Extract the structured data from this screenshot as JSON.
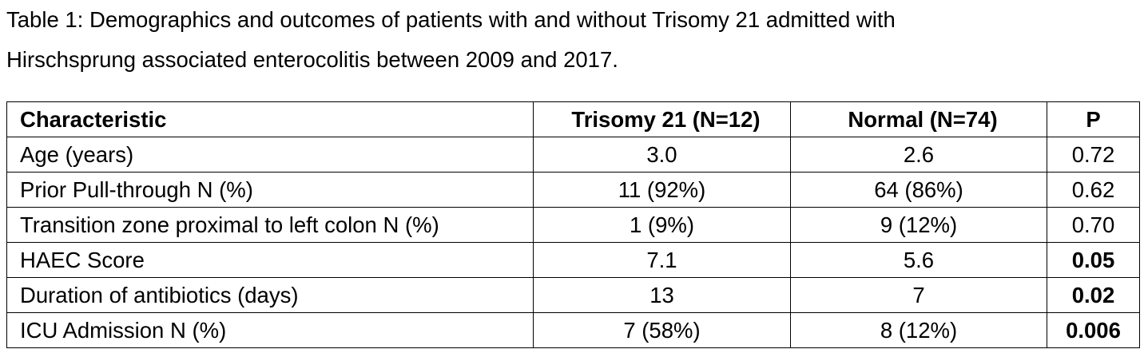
{
  "caption": {
    "line1": "Table 1: Demographics and outcomes of patients with and without Trisomy 21 admitted with",
    "line2": "Hirschsprung associated enterocolitis between 2009 and 2017."
  },
  "table": {
    "headers": [
      "Characteristic",
      "Trisomy 21 (N=12)",
      "Normal (N=74)",
      "P"
    ],
    "rows": [
      {
        "characteristic": "Age (years)",
        "trisomy": "3.0",
        "normal": "2.6",
        "p": "0.72",
        "p_bold": false
      },
      {
        "characteristic": "Prior Pull-through N (%)",
        "trisomy": "11 (92%)",
        "normal": "64 (86%)",
        "p": "0.62",
        "p_bold": false
      },
      {
        "characteristic": "Transition zone proximal to left colon N (%)",
        "trisomy": "1 (9%)",
        "normal": "9 (12%)",
        "p": "0.70",
        "p_bold": false
      },
      {
        "characteristic": "HAEC Score",
        "trisomy": "7.1",
        "normal": "5.6",
        "p": "0.05",
        "p_bold": true
      },
      {
        "characteristic": "Duration of antibiotics (days)",
        "trisomy": "13",
        "normal": "7",
        "p": "0.02",
        "p_bold": true
      },
      {
        "characteristic": "ICU Admission N (%)",
        "trisomy": "7 (58%)",
        "normal": "8 (12%)",
        "p": "0.006",
        "p_bold": true
      }
    ]
  }
}
